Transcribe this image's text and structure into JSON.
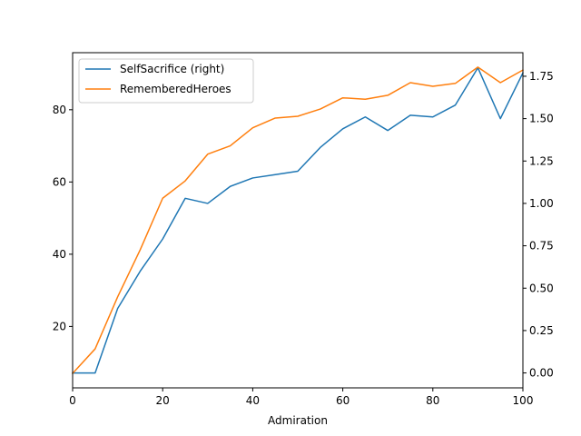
{
  "chart_data": {
    "type": "line",
    "title": "",
    "xlabel": "Admiration",
    "ylabel": "",
    "ylabel_right": "",
    "xlim": [
      0,
      100
    ],
    "ylim_left": [
      3.0,
      95.8
    ],
    "ylim_right": [
      -0.088,
      1.889
    ],
    "x_ticks": [
      0,
      20,
      40,
      60,
      80,
      100
    ],
    "y_ticks_left": [
      20,
      40,
      60,
      80
    ],
    "y_ticks_right": [
      0.0,
      0.25,
      0.5,
      0.75,
      1.0,
      1.25,
      1.5,
      1.75
    ],
    "y_tick_labels_right": [
      "0.00",
      "0.25",
      "0.50",
      "0.75",
      "1.00",
      "1.25",
      "1.50",
      "1.75"
    ],
    "grid": false,
    "legend_position": "upper-left",
    "x": [
      0,
      5,
      10,
      15,
      20,
      25,
      30,
      35,
      40,
      45,
      50,
      55,
      60,
      65,
      70,
      75,
      80,
      85,
      90,
      95,
      100
    ],
    "series": [
      {
        "name": "SelfSacrifice (right)",
        "axis": "right",
        "color": "#1f77b4",
        "values": [
          0.0,
          0.0,
          0.38,
          0.6,
          0.79,
          1.03,
          1.0,
          1.1,
          1.15,
          1.17,
          1.19,
          1.33,
          1.44,
          1.51,
          1.43,
          1.52,
          1.51,
          1.58,
          1.8,
          1.5,
          1.77
        ]
      },
      {
        "name": "RememberedHeroes",
        "axis": "left",
        "color": "#ff7f0e",
        "values": [
          7.0,
          13.8,
          28.2,
          41.2,
          55.5,
          60.3,
          67.7,
          70.0,
          75.0,
          77.7,
          78.2,
          80.2,
          83.3,
          82.9,
          84.0,
          87.5,
          86.5,
          87.3,
          91.8,
          87.5,
          91.0
        ]
      }
    ],
    "legend_entries": [
      "SelfSacrifice (right)",
      "RememberedHeroes"
    ]
  }
}
